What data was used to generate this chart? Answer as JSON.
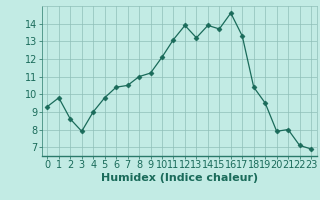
{
  "x": [
    0,
    1,
    2,
    3,
    4,
    5,
    6,
    7,
    8,
    9,
    10,
    11,
    12,
    13,
    14,
    15,
    16,
    17,
    18,
    19,
    20,
    21,
    22,
    23
  ],
  "y": [
    9.3,
    9.8,
    8.6,
    7.9,
    9.0,
    9.8,
    10.4,
    10.5,
    11.0,
    11.2,
    12.1,
    13.1,
    13.9,
    13.2,
    13.9,
    13.7,
    14.6,
    13.3,
    10.4,
    9.5,
    7.9,
    8.0,
    7.1,
    6.9
  ],
  "line_color": "#1a6b5a",
  "marker": "D",
  "marker_size": 2.5,
  "bg_color": "#c2ebe4",
  "grid_color": "#8fbfb8",
  "xlabel": "Humidex (Indice chaleur)",
  "xlim": [
    -0.5,
    23.5
  ],
  "ylim": [
    6.5,
    15.0
  ],
  "yticks": [
    7,
    8,
    9,
    10,
    11,
    12,
    13,
    14
  ],
  "xticks": [
    0,
    1,
    2,
    3,
    4,
    5,
    6,
    7,
    8,
    9,
    10,
    11,
    12,
    13,
    14,
    15,
    16,
    17,
    18,
    19,
    20,
    21,
    22,
    23
  ],
  "xlabel_fontsize": 8,
  "tick_fontsize": 7,
  "label_color": "#1a6b5a",
  "axis_bottom_color": "#2a7a6a"
}
